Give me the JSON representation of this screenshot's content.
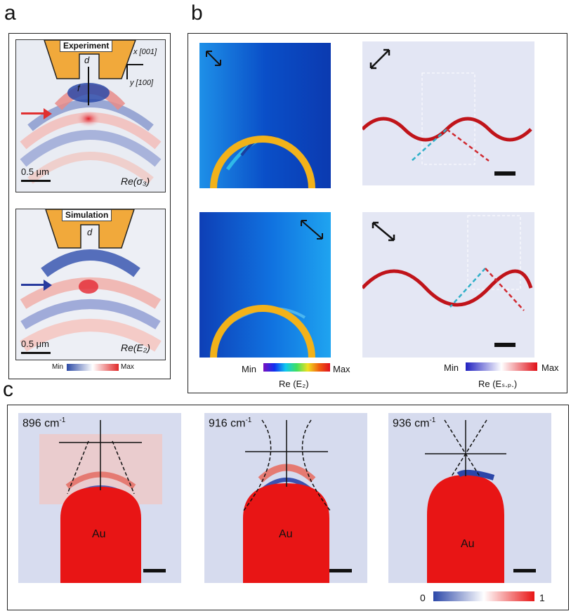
{
  "panel_a": {
    "letter": "a",
    "top": {
      "tag": "Experiment",
      "d_label": "d",
      "f_label": "f",
      "x_axis": "x [001]",
      "y_axis": "y [100]",
      "scalebar": "0.5 μm",
      "quantity": "Re(σ₃)",
      "arrow_color": "#e03030"
    },
    "bottom": {
      "tag": "Simulation",
      "d_label": "d",
      "scalebar": "0.5 μm",
      "quantity": "Re(E₂)",
      "arrow_color": "#283a9e"
    },
    "colorbar": {
      "min": "Min",
      "max": "Max"
    }
  },
  "panel_b": {
    "letter": "b",
    "left_colorbar": {
      "min": "Min",
      "max": "Max",
      "quantity": "Re (E₂)"
    },
    "right_colorbar": {
      "min": "Min",
      "max": "Max",
      "quantity": "Re (Eₛ.ₚ.)"
    }
  },
  "panel_c": {
    "letter": "c",
    "maps": [
      {
        "wavenumber": "896 cm",
        "unit_sup": "-1",
        "label": "Au"
      },
      {
        "wavenumber": "916 cm",
        "unit_sup": "-1",
        "label": "Au"
      },
      {
        "wavenumber": "936 cm",
        "unit_sup": "-1",
        "label": "Au"
      }
    ],
    "colorbar": {
      "min": "0",
      "max": "1"
    }
  }
}
